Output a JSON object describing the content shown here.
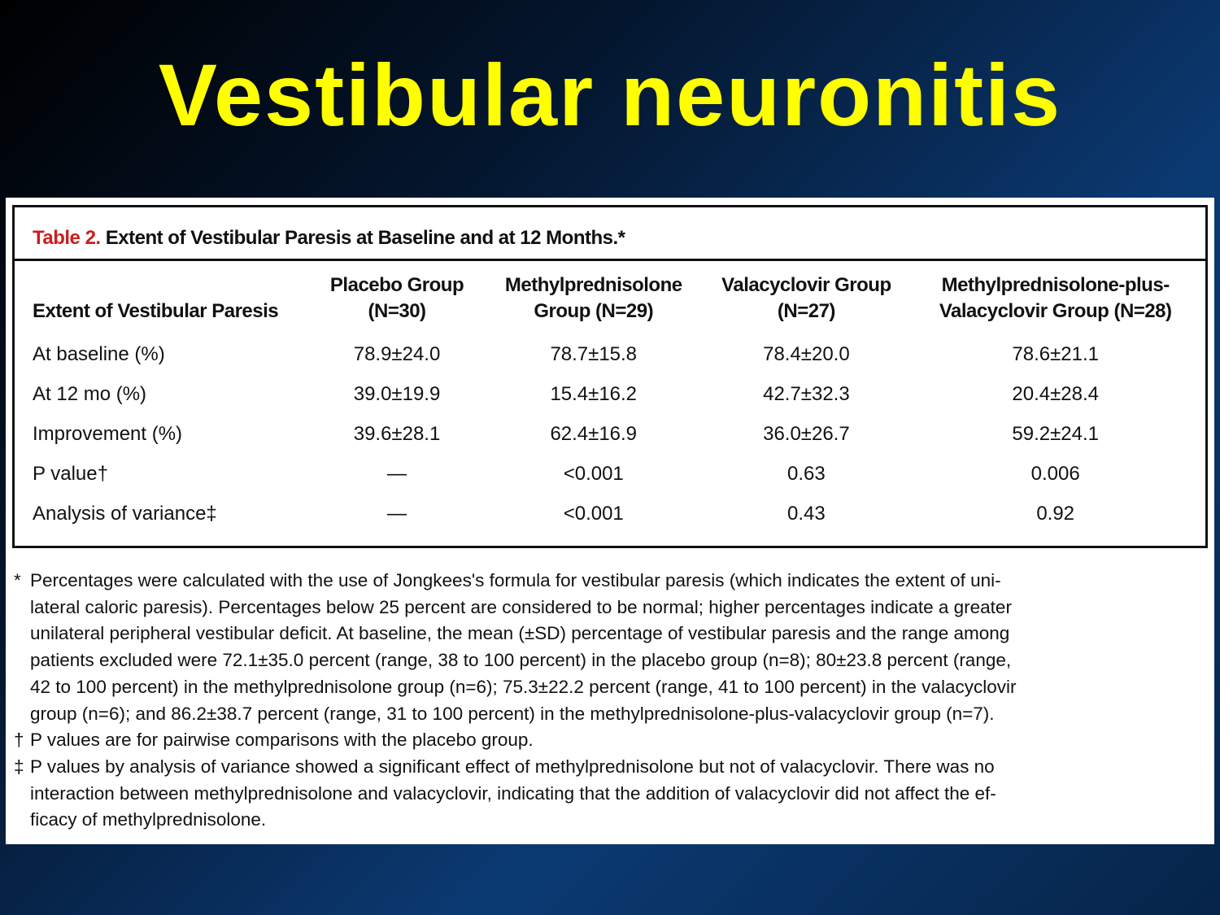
{
  "slide": {
    "title": "Vestibular neuronitis"
  },
  "table": {
    "caption_label": "Table 2.",
    "caption_text": "Extent of Vestibular Paresis at Baseline and at 12 Months.*",
    "columns": [
      [
        "Extent of Vestibular Paresis"
      ],
      [
        "Placebo Group",
        "(N=30)"
      ],
      [
        "Methylprednisolone",
        "Group (N=29)"
      ],
      [
        "Valacyclovir Group",
        "(N=27)"
      ],
      [
        "Methylprednisolone-plus-",
        "Valacyclovir Group (N=28)"
      ]
    ],
    "rows": [
      {
        "label": "At baseline (%)",
        "values": [
          "78.9±24.0",
          "78.7±15.8",
          "78.4±20.0",
          "78.6±21.1"
        ]
      },
      {
        "label": "At 12 mo (%)",
        "values": [
          "39.0±19.9",
          "15.4±16.2",
          "42.7±32.3",
          "20.4±28.4"
        ]
      },
      {
        "label": "Improvement (%)",
        "values": [
          "39.6±28.1",
          "62.4±16.9",
          "36.0±26.7",
          "59.2±24.1"
        ]
      },
      {
        "label": "P value†",
        "values": [
          "—",
          "<0.001",
          "0.63",
          "0.006"
        ]
      },
      {
        "label": "Analysis of variance‡",
        "values": [
          "—",
          "<0.001",
          "0.43",
          "0.92"
        ]
      }
    ]
  },
  "footnotes": [
    {
      "mark": "*",
      "lines": [
        "Percentages were calculated with the use of Jongkees's formula for vestibular paresis (which indicates the extent of uni-",
        "lateral caloric paresis). Percentages below 25 percent are considered to be normal; higher percentages indicate a greater",
        "unilateral peripheral vestibular deficit. At baseline, the mean (±SD) percentage of vestibular paresis and the range among",
        "patients excluded were 72.1±35.0 percent (range, 38 to 100 percent) in the placebo group (n=8); 80±23.8 percent (range,",
        "42 to 100 percent) in the methylprednisolone group (n=6); 75.3±22.2 percent (range, 41 to 100 percent) in the valacyclovir",
        "group (n=6); and 86.2±38.7 percent (range, 31 to 100 percent) in the methylprednisolone-plus-valacyclovir group (n=7)."
      ]
    },
    {
      "mark": "†",
      "lines": [
        "P values are for pairwise comparisons with the placebo group."
      ]
    },
    {
      "mark": "‡",
      "lines": [
        "P values by analysis of variance showed a significant effect of methylprednisolone but not of valacyclovir. There was no",
        "interaction between methylprednisolone and valacyclovir, indicating that the addition of valacyclovir did not affect the ef-",
        "ficacy of methylprednisolone."
      ]
    }
  ]
}
